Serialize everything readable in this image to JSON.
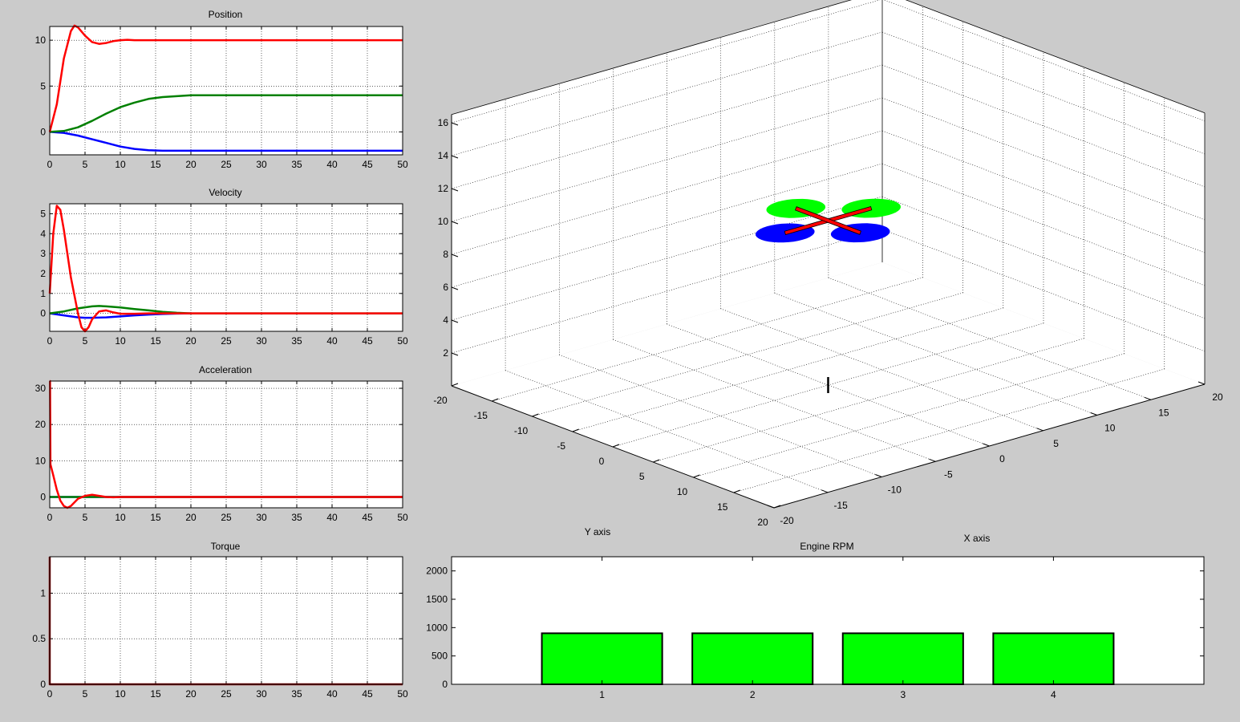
{
  "figure": {
    "background": "#cbcbcb",
    "axes_background": "#ffffff"
  },
  "colors": {
    "x_series": "#ff0000",
    "y_series": "#008000",
    "z_series": "#0000ff",
    "torque": "#8b0000",
    "bar": "#00ff00",
    "arm": "#ff0000",
    "rotor_blue": "#0000ff",
    "rotor_green": "#00ff00"
  },
  "chart_data": [
    {
      "type": "line",
      "title": "Position",
      "xlim": [
        0,
        50
      ],
      "ylim": [
        -2.5,
        11.5
      ],
      "xticks": [
        0,
        5,
        10,
        15,
        20,
        25,
        30,
        35,
        40,
        45,
        50
      ],
      "yticks": [
        0,
        5,
        10
      ],
      "grid": true,
      "series": [
        {
          "color": "#0000ff",
          "x": [
            0,
            2,
            4,
            6,
            8,
            10,
            12,
            14,
            16,
            18,
            50
          ],
          "y": [
            0,
            -0.1,
            -0.4,
            -0.8,
            -1.2,
            -1.6,
            -1.85,
            -2.0,
            -2.05,
            -2.05,
            -2.05
          ]
        },
        {
          "color": "#008000",
          "x": [
            0,
            2,
            4,
            6,
            8,
            10,
            12,
            14,
            16,
            18,
            20,
            25,
            50
          ],
          "y": [
            0,
            0.1,
            0.5,
            1.2,
            2.0,
            2.7,
            3.2,
            3.6,
            3.8,
            3.9,
            4.0,
            4.0,
            4.0
          ]
        },
        {
          "color": "#ff0000",
          "x": [
            0,
            1,
            2,
            3,
            3.5,
            4,
            5,
            6,
            7,
            8,
            9,
            10,
            11,
            12,
            14,
            50
          ],
          "y": [
            0,
            3.0,
            8.0,
            11.0,
            11.6,
            11.4,
            10.5,
            9.8,
            9.6,
            9.7,
            9.9,
            10.0,
            10.05,
            10.0,
            10.0,
            10.0
          ]
        }
      ]
    },
    {
      "type": "line",
      "title": "Velocity",
      "xlim": [
        0,
        50
      ],
      "ylim": [
        -0.9,
        5.5
      ],
      "xticks": [
        0,
        5,
        10,
        15,
        20,
        25,
        30,
        35,
        40,
        45,
        50
      ],
      "yticks": [
        0,
        1,
        2,
        3,
        4,
        5
      ],
      "grid": true,
      "series": [
        {
          "color": "#0000ff",
          "x": [
            0,
            2,
            4,
            5,
            6,
            8,
            10,
            12,
            14,
            16,
            18,
            20
          ],
          "y": [
            0,
            -0.1,
            -0.2,
            -0.22,
            -0.22,
            -0.2,
            -0.15,
            -0.1,
            -0.06,
            -0.03,
            -0.01,
            0
          ]
        },
        {
          "color": "#008000",
          "x": [
            0,
            2,
            4,
            6,
            7,
            8,
            10,
            12,
            14,
            16,
            18,
            20,
            50
          ],
          "y": [
            0,
            0.1,
            0.25,
            0.35,
            0.37,
            0.35,
            0.3,
            0.22,
            0.15,
            0.08,
            0.03,
            0,
            0
          ]
        },
        {
          "color": "#ff0000",
          "x": [
            0,
            0.5,
            1,
            1.5,
            2,
            3,
            4,
            4.5,
            5,
            5.5,
            6,
            7,
            8,
            9,
            10,
            12,
            14,
            16,
            50
          ],
          "y": [
            1.0,
            4.0,
            5.4,
            5.2,
            4.2,
            1.8,
            0,
            -0.7,
            -0.9,
            -0.7,
            -0.3,
            0.1,
            0.15,
            0.05,
            -0.02,
            -0.02,
            0,
            0,
            0
          ]
        }
      ]
    },
    {
      "type": "line",
      "title": "Acceleration",
      "xlim": [
        0,
        50
      ],
      "ylim": [
        -3,
        32
      ],
      "xticks": [
        0,
        5,
        10,
        15,
        20,
        25,
        30,
        35,
        40,
        45,
        50
      ],
      "yticks": [
        0,
        10,
        20,
        30
      ],
      "grid": true,
      "series": [
        {
          "color": "#0000ff",
          "x": [
            0,
            50
          ],
          "y": [
            0,
            0
          ]
        },
        {
          "color": "#008000",
          "x": [
            0,
            50
          ],
          "y": [
            0,
            0
          ]
        },
        {
          "color": "#ff0000",
          "x": [
            0,
            0.05,
            0.1,
            0.5,
            1,
            1.5,
            2,
            2.5,
            3,
            3.5,
            4,
            5,
            6,
            7,
            8,
            9,
            10,
            50
          ],
          "y": [
            32,
            32,
            9,
            6,
            2,
            -1,
            -2.5,
            -3,
            -2.5,
            -1.5,
            -0.5,
            0.3,
            0.6,
            0.3,
            0,
            -0.1,
            0,
            0
          ]
        }
      ]
    },
    {
      "type": "line",
      "title": "Torque",
      "xlim": [
        0,
        50
      ],
      "ylim": [
        0,
        1.4
      ],
      "xticks": [
        0,
        5,
        10,
        15,
        20,
        25,
        30,
        35,
        40,
        45,
        50
      ],
      "yticks": [
        0,
        0.5,
        1
      ],
      "grid": true,
      "series": [
        {
          "color": "#8b0000",
          "x": [
            0,
            0,
            50
          ],
          "y": [
            1.4,
            0,
            0
          ]
        }
      ]
    },
    {
      "type": "bar",
      "title": "Engine RPM",
      "categories": [
        "1",
        "2",
        "3",
        "4"
      ],
      "values": [
        900,
        900,
        900,
        900
      ],
      "ylim": [
        0,
        2250
      ],
      "yticks": [
        0,
        500,
        1000,
        1500,
        2000
      ],
      "color": "#00ff00",
      "grid": false
    },
    {
      "type": "scatter",
      "title": "",
      "xlabel": "X axis",
      "ylabel": "Y axis",
      "xlim": [
        -20,
        20
      ],
      "ylim": [
        -20,
        20
      ],
      "zlim": [
        0,
        16
      ],
      "xticks": [
        -20,
        -15,
        -10,
        -5,
        0,
        5,
        10,
        15,
        20
      ],
      "yticks": [
        -20,
        -15,
        -10,
        -5,
        0,
        5,
        10,
        15,
        20
      ],
      "zticks": [
        2,
        4,
        6,
        8,
        10,
        12,
        14,
        16
      ],
      "grid": true,
      "quadrotor": {
        "position": [
          0,
          0,
          10
        ],
        "arm_length": 4,
        "rotor_radius": 2.2
      }
    }
  ]
}
